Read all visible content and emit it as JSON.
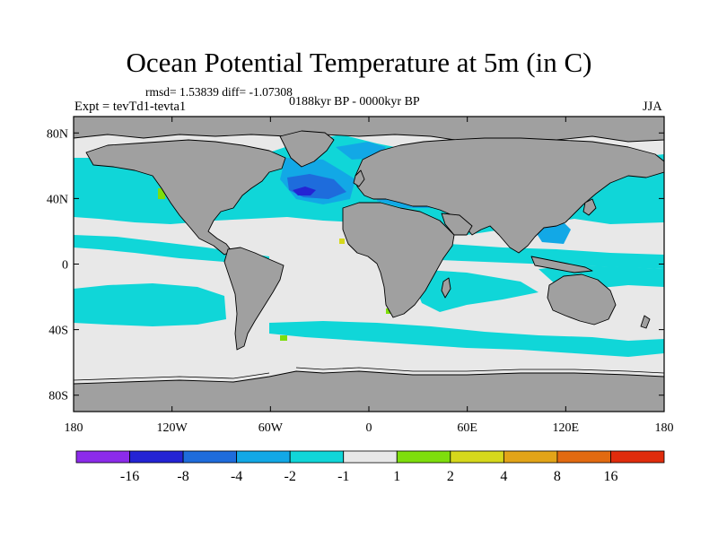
{
  "title": "Ocean Potential Temperature at 5m (in C)",
  "stats": "rmsd= 1.53839 diff= -1.07308",
  "subtitle": "0188kyr BP - 0000kyr BP",
  "experiment": "Expt = tevTd1-tevta1",
  "season": "JJA",
  "axes": {
    "x_ticks": [
      {
        "lon": -180,
        "label": "180"
      },
      {
        "lon": -120,
        "label": "120W"
      },
      {
        "lon": -60,
        "label": "60W"
      },
      {
        "lon": 0,
        "label": "0"
      },
      {
        "lon": 60,
        "label": "60E"
      },
      {
        "lon": 120,
        "label": "120E"
      },
      {
        "lon": 180,
        "label": "180"
      }
    ],
    "y_ticks": [
      {
        "lat": 80,
        "label": "80N"
      },
      {
        "lat": 40,
        "label": "40N"
      },
      {
        "lat": 0,
        "label": "0"
      },
      {
        "lat": -40,
        "label": "40S"
      },
      {
        "lat": -80,
        "label": "80S"
      }
    ],
    "lon_range": [
      -180,
      180
    ],
    "lat_range": [
      -90,
      90
    ]
  },
  "colorbar": {
    "colors": [
      "#8c2bea",
      "#2424d4",
      "#1e6cdc",
      "#12a8e6",
      "#10d6d8",
      "#e8e8e8",
      "#7ede0c",
      "#d6d81c",
      "#e2a418",
      "#e26a10",
      "#e02c0c"
    ],
    "labels": [
      "-16",
      "-8",
      "-4",
      "-2",
      "-1",
      "1",
      "2",
      "4",
      "8",
      "16"
    ]
  },
  "colors": {
    "land": "#a0a0a0",
    "ocean_default": "#e8e8e8",
    "cyan": "#10d6d8",
    "light_blue": "#12a8e6",
    "blue": "#1e6cdc",
    "dark_blue": "#2424d4",
    "green": "#7ede0c",
    "yellow": "#d6d81c"
  }
}
